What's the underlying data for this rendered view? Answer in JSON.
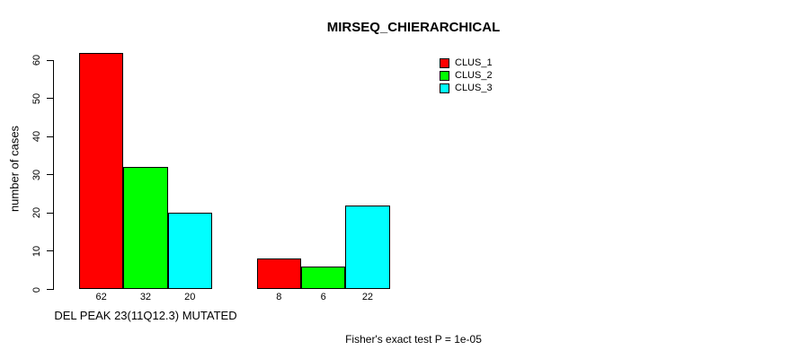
{
  "chart_data": {
    "type": "bar",
    "title": "MIRSEQ_CHIERARCHICAL",
    "ylabel": "number of cases",
    "xlabel": "DEL PEAK 23(11Q12.3) MUTATED",
    "annotation": "Fisher's exact test P = 1e-05",
    "ylim": [
      0,
      60
    ],
    "yticks": [
      0,
      10,
      20,
      30,
      40,
      50,
      60
    ],
    "grid": false,
    "legend_position": "top-right",
    "series": [
      {
        "name": "CLUS_1",
        "color": "#ff0000"
      },
      {
        "name": "CLUS_2",
        "color": "#00ff00"
      },
      {
        "name": "CLUS_3",
        "color": "#00ffff"
      }
    ],
    "groups": [
      {
        "values": [
          62,
          32,
          20
        ],
        "bar_labels": [
          "62",
          "32",
          "20"
        ]
      },
      {
        "values": [
          8,
          6,
          22
        ],
        "bar_labels": [
          "8",
          "6",
          "22"
        ]
      }
    ]
  }
}
